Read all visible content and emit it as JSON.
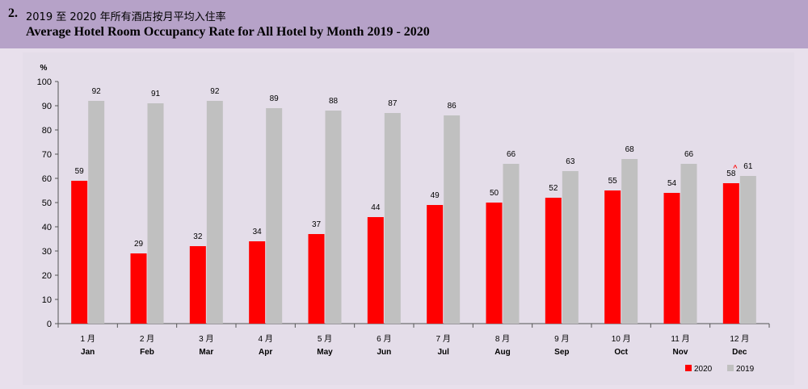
{
  "header": {
    "number": "2.",
    "title_zh": "2019 至 2020 年所有酒店按月平均入住率",
    "title_en": "Average Hotel Room Occupancy Rate for All Hotel by Month 2019 - 2020"
  },
  "colors": {
    "series_2020": "#ff0000",
    "series_2019": "#c0c0c0",
    "header_bg": "#b6a2c8",
    "plot_bg": "#e8e0ec"
  },
  "chart_data": {
    "type": "bar",
    "title": "Average Hotel Room Occupancy Rate for All Hotel by Month 2019 - 2020",
    "ylabel": "%",
    "xlabel": "",
    "ylim": [
      0,
      100
    ],
    "yticks": [
      0,
      10,
      20,
      30,
      40,
      50,
      60,
      70,
      80,
      90,
      100
    ],
    "grid": false,
    "legend_position": "bottom-right",
    "categories_zh": [
      "1 月",
      "2 月",
      "3 月",
      "4 月",
      "5 月",
      "6 月",
      "7 月",
      "8 月",
      "9 月",
      "10 月",
      "11 月",
      "12 月"
    ],
    "categories": [
      "Jan",
      "Feb",
      "Mar",
      "Apr",
      "May",
      "Jun",
      "Jul",
      "Aug",
      "Sep",
      "Oct",
      "Nov",
      "Dec"
    ],
    "series": [
      {
        "name": "2020",
        "color": "#ff0000",
        "values": [
          59,
          29,
          32,
          34,
          37,
          44,
          49,
          50,
          52,
          55,
          54,
          58
        ]
      },
      {
        "name": "2019",
        "color": "#c0c0c0",
        "values": [
          92,
          91,
          92,
          89,
          88,
          87,
          86,
          66,
          63,
          68,
          66,
          61
        ]
      }
    ],
    "annotations": [
      {
        "category": "Dec",
        "series": "2020",
        "text": "^"
      }
    ]
  }
}
